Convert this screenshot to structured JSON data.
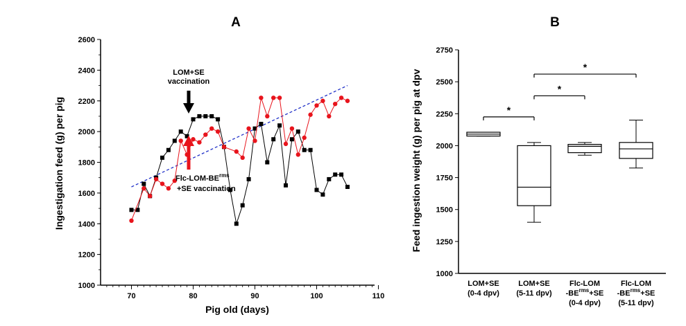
{
  "chart_data": [
    {
      "panel": "A",
      "type": "line",
      "title": "A",
      "xlabel": "Pig old (days)",
      "ylabel": "Ingestigation feed (g) per pig",
      "xlim": [
        65,
        110
      ],
      "ylim": [
        1000,
        2600
      ],
      "xticks": [
        "70",
        "80",
        "90",
        "100",
        "110"
      ],
      "yticks": [
        "1000",
        "1200",
        "1400",
        "1600",
        "1800",
        "2000",
        "2200",
        "2400",
        "2600"
      ],
      "series": [
        {
          "name": "LOM+SE",
          "color": "#000000",
          "marker": "square",
          "points": [
            [
              70,
              1490
            ],
            [
              71,
              1490
            ],
            [
              72,
              1660
            ],
            [
              73,
              1580
            ],
            [
              74,
              1700
            ],
            [
              75,
              1830
            ],
            [
              76,
              1880
            ],
            [
              77,
              1940
            ],
            [
              78,
              2000
            ],
            [
              79,
              1970
            ],
            [
              80,
              2080
            ],
            [
              81,
              2100
            ],
            [
              82,
              2100
            ],
            [
              83,
              2100
            ],
            [
              84,
              2080
            ],
            [
              85,
              1900
            ],
            [
              86,
              1620
            ],
            [
              87,
              1400
            ],
            [
              88,
              1520
            ],
            [
              89,
              1690
            ],
            [
              90,
              2020
            ],
            [
              91,
              2050
            ],
            [
              92,
              1800
            ],
            [
              93,
              1950
            ],
            [
              94,
              2040
            ],
            [
              95,
              1650
            ],
            [
              96,
              1950
            ],
            [
              97,
              2000
            ],
            [
              98,
              1880
            ],
            [
              99,
              1880
            ],
            [
              100,
              1620
            ],
            [
              101,
              1590
            ],
            [
              102,
              1690
            ],
            [
              103,
              1720
            ],
            [
              104,
              1720
            ],
            [
              105,
              1640
            ]
          ]
        },
        {
          "name": "Flc-LOM-BErms+SE",
          "color": "#e8141c",
          "marker": "circle",
          "points": [
            [
              70,
              1420
            ],
            [
              72,
              1630
            ],
            [
              73,
              1580
            ],
            [
              74,
              1690
            ],
            [
              75,
              1660
            ],
            [
              76,
              1630
            ],
            [
              77,
              1680
            ],
            [
              78,
              1940
            ],
            [
              79,
              1850
            ],
            [
              80,
              1950
            ],
            [
              81,
              1930
            ],
            [
              82,
              1980
            ],
            [
              83,
              2020
            ],
            [
              84,
              2000
            ],
            [
              85,
              1900
            ],
            [
              87,
              1870
            ],
            [
              88,
              1830
            ],
            [
              89,
              2020
            ],
            [
              90,
              1940
            ],
            [
              91,
              2220
            ],
            [
              92,
              2100
            ],
            [
              93,
              2220
            ],
            [
              94,
              2220
            ],
            [
              95,
              1920
            ],
            [
              96,
              2020
            ],
            [
              97,
              1850
            ],
            [
              98,
              1960
            ],
            [
              99,
              2110
            ],
            [
              100,
              2170
            ],
            [
              101,
              2200
            ],
            [
              102,
              2100
            ],
            [
              103,
              2180
            ],
            [
              104,
              2220
            ],
            [
              105,
              2200
            ]
          ]
        }
      ],
      "trendline": {
        "color": "#2030c8",
        "style": "dashed",
        "x": [
          70,
          105
        ],
        "y": [
          1640,
          2300
        ]
      },
      "annotations": [
        {
          "lines": [
            "LOM+SE",
            "vaccination"
          ],
          "arrow_color": "#000000",
          "direction": "down",
          "target_x": 80
        },
        {
          "lines": [
            "Flc-LOM-BE",
            "rms",
            "+SE vaccination"
          ],
          "arrow_color": "#e8141c",
          "direction": "up",
          "target_x": 80
        }
      ]
    },
    {
      "panel": "B",
      "type": "box",
      "title": "B",
      "xlabel": "",
      "ylabel": "Feed ingestion weight (g) per pig at dpv",
      "ylim": [
        1000,
        2750
      ],
      "yticks": [
        "1000",
        "1250",
        "1500",
        "1750",
        "2000",
        "2250",
        "2500",
        "2750"
      ],
      "groups": [
        {
          "label_lines": [
            [
              "LOM+SE",
              ""
            ],
            [
              "(0-4 dpv)",
              ""
            ]
          ],
          "min": 2075,
          "q1": 2075,
          "median": 2090,
          "q3": 2105,
          "max": 2105
        },
        {
          "label_lines": [
            [
              "LOM+SE",
              ""
            ],
            [
              "(5-11 dpv)",
              ""
            ]
          ],
          "min": 1400,
          "q1": 1530,
          "median": 1675,
          "q3": 2000,
          "max": 2025
        },
        {
          "label_lines": [
            [
              "Flc-LOM",
              ""
            ],
            [
              "-BE",
              "rms",
              "+SE"
            ],
            [
              "(0-4 dpv)",
              ""
            ]
          ],
          "min": 1925,
          "q1": 1945,
          "median": 1995,
          "q3": 2010,
          "max": 2025
        },
        {
          "label_lines": [
            [
              "Flc-LOM",
              ""
            ],
            [
              "-BE",
              "rms",
              "+SE"
            ],
            [
              "(5-11 dpv)",
              ""
            ]
          ],
          "min": 1825,
          "q1": 1900,
          "median": 1975,
          "q3": 2025,
          "max": 2200
        }
      ],
      "significance": [
        {
          "from_group": 0,
          "to_group": 1,
          "y": 2225,
          "label": "*"
        },
        {
          "from_group": 1,
          "to_group": 2,
          "y": 2390,
          "label": "*"
        },
        {
          "from_group": 1,
          "to_group": 3,
          "y": 2560,
          "label": "*"
        }
      ]
    }
  ]
}
